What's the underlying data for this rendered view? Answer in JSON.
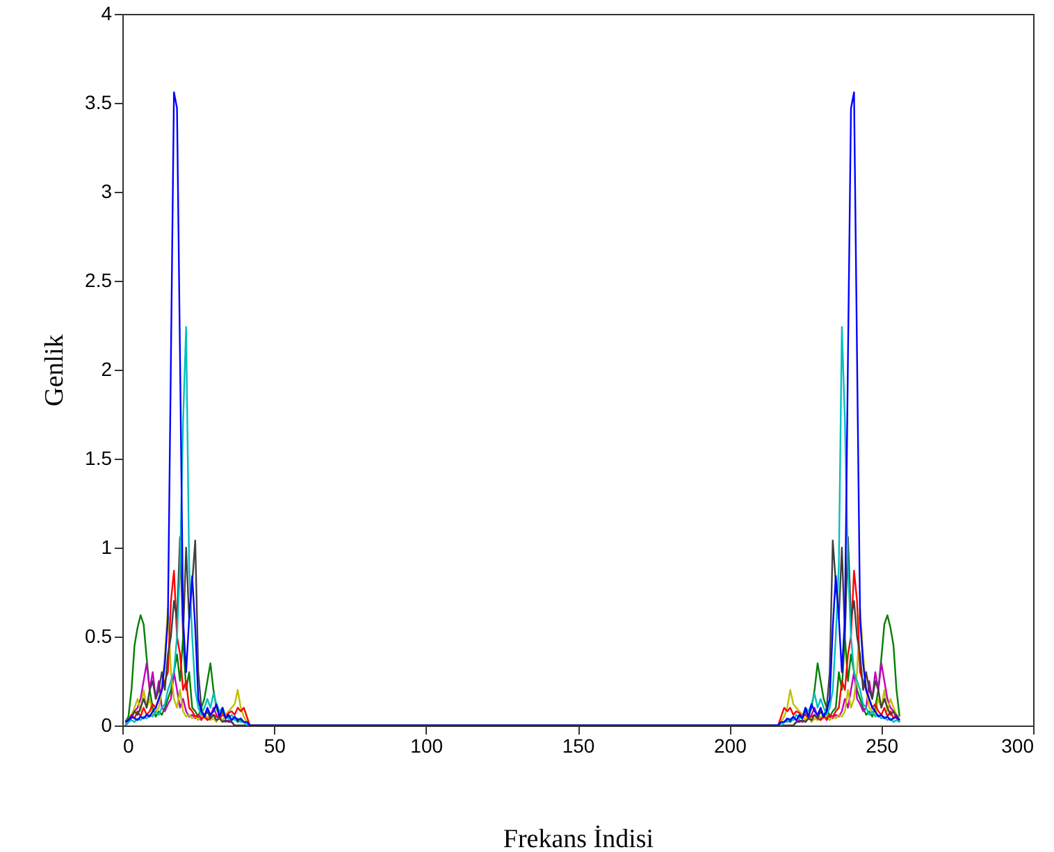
{
  "chart_data": {
    "type": "line",
    "xlabel": "Frekans İndisi",
    "ylabel": "Genlik",
    "xlim": [
      0,
      300
    ],
    "xticks": [
      0,
      50,
      100,
      150,
      200,
      250,
      300
    ],
    "ylim": [
      0,
      4
    ],
    "yticks": [
      0,
      0.5,
      1,
      1.5,
      2,
      2.5,
      3,
      3.5,
      4
    ],
    "grid": false,
    "marker": "none",
    "line_style": "solid",
    "x": [
      1,
      2,
      3,
      4,
      5,
      6,
      7,
      8,
      9,
      10,
      11,
      12,
      13,
      14,
      15,
      16,
      17,
      18,
      19,
      20,
      21,
      22,
      23,
      24,
      25,
      26,
      27,
      28,
      29,
      30,
      31,
      32,
      33,
      34,
      35,
      36,
      37,
      38,
      39,
      40,
      41,
      42,
      43,
      44,
      214,
      215,
      216,
      217,
      218,
      219,
      220,
      221,
      222,
      223,
      224,
      225,
      226,
      227,
      228,
      229,
      230,
      231,
      232,
      233,
      234,
      235,
      236,
      237,
      238,
      239,
      240,
      241,
      242,
      243,
      244,
      245,
      246,
      247,
      248,
      249,
      250,
      251,
      252,
      253,
      254,
      255,
      256
    ],
    "series": [
      {
        "color": "#008000",
        "values": [
          0.02,
          0.05,
          0.2,
          0.45,
          0.55,
          0.62,
          0.57,
          0.38,
          0.2,
          0.1,
          0.05,
          0.08,
          0.06,
          0.1,
          0.15,
          0.2,
          0.3,
          0.4,
          0.25,
          0.5,
          0.2,
          0.3,
          0.1,
          0.08,
          0.05,
          0.1,
          0.15,
          0.25,
          0.35,
          0.2,
          0.1,
          0.05,
          0.08,
          0.04,
          0.05,
          0.03,
          0.04,
          0.02,
          0.03,
          0.02,
          0,
          0,
          0,
          0,
          0,
          0,
          0,
          0,
          0.02,
          0.03,
          0.02,
          0.04,
          0.03,
          0.05,
          0.04,
          0.08,
          0.05,
          0.1,
          0.2,
          0.35,
          0.25,
          0.15,
          0.1,
          0.05,
          0.08,
          0.1,
          0.3,
          0.2,
          0.5,
          0.25,
          0.4,
          0.3,
          0.2,
          0.15,
          0.1,
          0.06,
          0.08,
          0.05,
          0.1,
          0.2,
          0.38,
          0.57,
          0.62,
          0.55,
          0.45,
          0.2,
          0.05
        ]
      },
      {
        "color": "#bf00bf",
        "values": [
          0,
          0.02,
          0.04,
          0.08,
          0.1,
          0.15,
          0.25,
          0.35,
          0.2,
          0.3,
          0.15,
          0.25,
          0.1,
          0.08,
          0.12,
          0.15,
          0.3,
          0.2,
          0.1,
          0.15,
          0.08,
          0.05,
          0.06,
          0.04,
          0.05,
          0.03,
          0.06,
          0.04,
          0.05,
          0.1,
          0.06,
          0.04,
          0.03,
          0.02,
          0.03,
          0.02,
          0,
          0,
          0,
          0,
          0,
          0,
          0,
          0,
          0,
          0,
          0,
          0,
          0,
          0,
          0,
          0,
          0.02,
          0.03,
          0.02,
          0.03,
          0.04,
          0.06,
          0.1,
          0.05,
          0.04,
          0.06,
          0.03,
          0.05,
          0.04,
          0.06,
          0.05,
          0.08,
          0.15,
          0.1,
          0.2,
          0.3,
          0.15,
          0.12,
          0.08,
          0.1,
          0.25,
          0.15,
          0.3,
          0.2,
          0.35,
          0.25,
          0.15,
          0.1,
          0.08,
          0.04,
          0.02
        ]
      },
      {
        "color": "#bfbf00",
        "values": [
          0.01,
          0.03,
          0.06,
          0.1,
          0.15,
          0.08,
          0.2,
          0.1,
          0.15,
          0.06,
          0.08,
          0.1,
          0.2,
          0.4,
          0.66,
          0.3,
          0.15,
          0.1,
          0.2,
          0.08,
          0.05,
          0.06,
          0.04,
          0.05,
          0.03,
          0.06,
          0.04,
          0.05,
          0.03,
          0.04,
          0.02,
          0.05,
          0.03,
          0.06,
          0.08,
          0.1,
          0.12,
          0.2,
          0.1,
          0.05,
          0.02,
          0,
          0,
          0,
          0,
          0,
          0,
          0.02,
          0.05,
          0.1,
          0.2,
          0.12,
          0.1,
          0.08,
          0.06,
          0.03,
          0.05,
          0.02,
          0.04,
          0.03,
          0.05,
          0.04,
          0.06,
          0.03,
          0.05,
          0.04,
          0.06,
          0.05,
          0.08,
          0.2,
          0.1,
          0.15,
          0.3,
          0.66,
          0.4,
          0.2,
          0.1,
          0.08,
          0.06,
          0.15,
          0.1,
          0.2,
          0.08,
          0.15,
          0.1,
          0.06,
          0.03
        ]
      },
      {
        "color": "#ff0000",
        "values": [
          0,
          0.03,
          0.06,
          0.04,
          0.08,
          0.05,
          0.1,
          0.06,
          0.08,
          0.12,
          0.1,
          0.15,
          0.2,
          0.25,
          0.3,
          0.7,
          0.87,
          0.5,
          0.4,
          0.2,
          0.25,
          0.1,
          0.08,
          0.05,
          0.06,
          0.04,
          0.05,
          0.03,
          0.04,
          0.06,
          0.05,
          0.04,
          0.06,
          0.05,
          0.07,
          0.08,
          0.06,
          0.1,
          0.08,
          0.1,
          0.05,
          0,
          0,
          0,
          0,
          0,
          0,
          0.05,
          0.1,
          0.08,
          0.1,
          0.06,
          0.08,
          0.07,
          0.05,
          0.06,
          0.04,
          0.05,
          0.06,
          0.04,
          0.03,
          0.05,
          0.04,
          0.06,
          0.05,
          0.08,
          0.1,
          0.25,
          0.2,
          0.4,
          0.5,
          0.87,
          0.7,
          0.3,
          0.25,
          0.2,
          0.15,
          0.1,
          0.12,
          0.08,
          0.06,
          0.1,
          0.05,
          0.08,
          0.04,
          0.06,
          0.03
        ]
      },
      {
        "color": "#404040",
        "values": [
          0,
          0.02,
          0.05,
          0.08,
          0.06,
          0.1,
          0.15,
          0.1,
          0.2,
          0.25,
          0.15,
          0.2,
          0.3,
          0.2,
          0.4,
          0.5,
          0.7,
          0.6,
          1.06,
          0.5,
          1.0,
          0.6,
          0.8,
          1.04,
          0.3,
          0.1,
          0.05,
          0.08,
          0.04,
          0.06,
          0.03,
          0.04,
          0.02,
          0.03,
          0.02,
          0.02,
          0,
          0,
          0,
          0,
          0,
          0,
          0,
          0,
          0,
          0,
          0,
          0,
          0,
          0,
          0,
          0,
          0.02,
          0.02,
          0.03,
          0.02,
          0.04,
          0.03,
          0.06,
          0.04,
          0.08,
          0.05,
          0.1,
          0.3,
          1.04,
          0.8,
          0.6,
          1.0,
          0.5,
          1.06,
          0.6,
          0.7,
          0.5,
          0.4,
          0.2,
          0.3,
          0.2,
          0.15,
          0.25,
          0.2,
          0.1,
          0.15,
          0.1,
          0.06,
          0.08,
          0.05,
          0.02
        ]
      },
      {
        "color": "#00bfbf",
        "values": [
          0,
          0.02,
          0.03,
          0.02,
          0.04,
          0.03,
          0.05,
          0.04,
          0.06,
          0.05,
          0.08,
          0.06,
          0.1,
          0.12,
          0.2,
          0.25,
          0.3,
          0.5,
          0.9,
          1.71,
          2.24,
          0.9,
          0.5,
          0.2,
          0.1,
          0.06,
          0.1,
          0.15,
          0.1,
          0.18,
          0.12,
          0.08,
          0.1,
          0.05,
          0.04,
          0.06,
          0.03,
          0.04,
          0.02,
          0.02,
          0,
          0,
          0,
          0,
          0,
          0,
          0,
          0,
          0.02,
          0.02,
          0.04,
          0.03,
          0.06,
          0.04,
          0.05,
          0.1,
          0.08,
          0.12,
          0.18,
          0.1,
          0.15,
          0.1,
          0.06,
          0.1,
          0.2,
          0.5,
          0.9,
          2.24,
          1.71,
          0.9,
          0.5,
          0.3,
          0.25,
          0.2,
          0.12,
          0.1,
          0.06,
          0.08,
          0.05,
          0.06,
          0.04,
          0.05,
          0.03,
          0.04,
          0.02,
          0.03,
          0.02
        ]
      },
      {
        "color": "#0000ff",
        "values": [
          0.02,
          0.03,
          0.05,
          0.04,
          0.03,
          0.05,
          0.04,
          0.06,
          0.05,
          0.08,
          0.1,
          0.15,
          0.2,
          0.35,
          0.6,
          2.07,
          3.56,
          3.47,
          2.06,
          0.6,
          0.3,
          0.6,
          0.84,
          0.55,
          0.15,
          0.08,
          0.05,
          0.1,
          0.06,
          0.08,
          0.12,
          0.05,
          0.1,
          0.04,
          0.06,
          0.03,
          0.05,
          0.03,
          0.04,
          0.02,
          0.02,
          0,
          0,
          0,
          0,
          0,
          0,
          0.02,
          0.02,
          0.04,
          0.03,
          0.05,
          0.03,
          0.06,
          0.04,
          0.1,
          0.05,
          0.12,
          0.08,
          0.06,
          0.1,
          0.05,
          0.08,
          0.15,
          0.55,
          0.84,
          0.6,
          0.3,
          0.6,
          2.06,
          3.47,
          3.56,
          2.07,
          0.6,
          0.35,
          0.2,
          0.15,
          0.1,
          0.08,
          0.05,
          0.06,
          0.04,
          0.05,
          0.03,
          0.04,
          0.05,
          0.03
        ]
      }
    ]
  }
}
